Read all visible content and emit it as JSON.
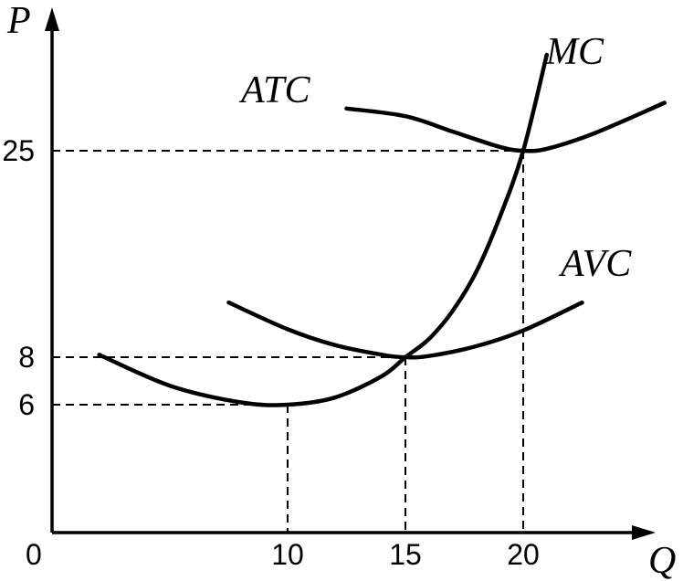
{
  "chart_data": {
    "type": "line",
    "xlabel": "Q",
    "ylabel": "P",
    "origin_label": "0",
    "x_ticks": [
      10,
      15,
      20
    ],
    "y_ticks": [
      6,
      8,
      25
    ],
    "xlim": [
      0,
      26
    ],
    "ylim": [
      0,
      30
    ],
    "grid": false,
    "series": [
      {
        "name": "MC",
        "points": [
          [
            2,
            8.2
          ],
          [
            5,
            6.8
          ],
          [
            8,
            6.1
          ],
          [
            10,
            6
          ],
          [
            12,
            6.3
          ],
          [
            14,
            7.2
          ],
          [
            15,
            8
          ],
          [
            16,
            9.5
          ],
          [
            17,
            11.8
          ],
          [
            18,
            15
          ],
          [
            19,
            19.5
          ],
          [
            20,
            25
          ],
          [
            21,
            30
          ]
        ]
      },
      {
        "name": "AVC",
        "points": [
          [
            7.5,
            12.5
          ],
          [
            10,
            10.3
          ],
          [
            12,
            9
          ],
          [
            14,
            8.2
          ],
          [
            15,
            8
          ],
          [
            16,
            8.1
          ],
          [
            18,
            8.9
          ],
          [
            20,
            10.2
          ],
          [
            22.5,
            12.5
          ]
        ]
      },
      {
        "name": "ATC",
        "points": [
          [
            12.5,
            27.2
          ],
          [
            15,
            26.8
          ],
          [
            17,
            26
          ],
          [
            19,
            25.2
          ],
          [
            20,
            25
          ],
          [
            21,
            25.1
          ],
          [
            23,
            25.9
          ],
          [
            26,
            27.5
          ]
        ]
      }
    ],
    "guides": [
      {
        "x": 10,
        "y": 6
      },
      {
        "x": 15,
        "y": 8
      },
      {
        "x": 20,
        "y": 25
      }
    ]
  }
}
